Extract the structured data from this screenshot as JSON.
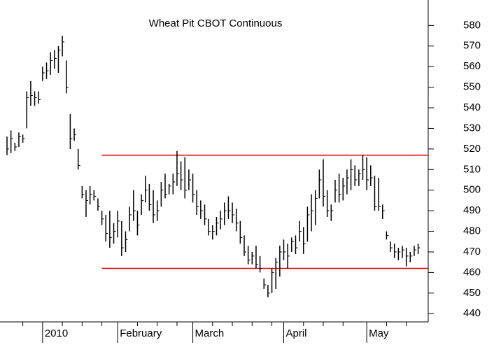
{
  "chart_data": {
    "type": "ohlc",
    "title": "Wheat Pit CBOT Continuous",
    "high": [
      526,
      529,
      523,
      528,
      527,
      548,
      553,
      548,
      548,
      560,
      562,
      567,
      568,
      570,
      575,
      563,
      537,
      530,
      520,
      502,
      500,
      502,
      500,
      496,
      490,
      488,
      490,
      484,
      490,
      485,
      480,
      492,
      500,
      490,
      498,
      507,
      503,
      500,
      495,
      504,
      508,
      503,
      508,
      519,
      514,
      516,
      510,
      508,
      500,
      495,
      493,
      486,
      483,
      487,
      490,
      494,
      497,
      494,
      491,
      485,
      478,
      473,
      470,
      473,
      468,
      457,
      454,
      462,
      467,
      473,
      476,
      474,
      477,
      478,
      485,
      482,
      492,
      498,
      500,
      510,
      515,
      500,
      493,
      505,
      508,
      506,
      510,
      515,
      512,
      510,
      517,
      516,
      512,
      507,
      506,
      493,
      480,
      475,
      474,
      472,
      473,
      472,
      470,
      473,
      474
    ],
    "low": [
      517,
      518,
      519,
      521,
      523,
      530,
      541,
      541,
      542,
      553,
      554,
      556,
      559,
      557,
      565,
      547,
      520,
      524,
      510,
      496,
      487,
      493,
      495,
      490,
      483,
      475,
      472,
      474,
      477,
      468,
      470,
      480,
      485,
      478,
      488,
      494,
      490,
      484,
      485,
      492,
      496,
      498,
      498,
      502,
      500,
      496,
      500,
      494,
      488,
      486,
      483,
      478,
      476,
      478,
      481,
      483,
      486,
      484,
      480,
      474,
      468,
      464,
      464,
      462,
      460,
      452,
      448,
      450,
      452,
      458,
      466,
      462,
      470,
      469,
      475,
      469,
      475,
      480,
      483,
      496,
      492,
      487,
      485,
      494,
      494,
      495,
      498,
      500,
      502,
      502,
      505,
      500,
      502,
      490,
      490,
      486,
      476,
      470,
      467,
      466,
      467,
      463,
      465,
      468,
      469
    ],
    "close": [
      520,
      525,
      521,
      526,
      525,
      545,
      546,
      545,
      544,
      557,
      558,
      563,
      564,
      568,
      572,
      550,
      525,
      527,
      512,
      498,
      495,
      498,
      497,
      492,
      486,
      479,
      477,
      480,
      485,
      472,
      476,
      488,
      490,
      483,
      495,
      500,
      493,
      488,
      490,
      500,
      498,
      502,
      504,
      508,
      505,
      500,
      505,
      498,
      492,
      490,
      486,
      480,
      480,
      484,
      486,
      490,
      490,
      488,
      484,
      477,
      470,
      466,
      468,
      464,
      462,
      454,
      450,
      460,
      465,
      470,
      470,
      468,
      475,
      472,
      480,
      474,
      488,
      490,
      496,
      505,
      497,
      490,
      490,
      500,
      498,
      502,
      506,
      510,
      505,
      508,
      510,
      505,
      506,
      492,
      492,
      490,
      478,
      472,
      470,
      470,
      471,
      468,
      468,
      471,
      472
    ],
    "color": "#000000",
    "ylim": [
      436,
      591
    ],
    "yticks": [
      440,
      450,
      460,
      470,
      480,
      490,
      500,
      510,
      520,
      530,
      540,
      550,
      560,
      570,
      580
    ],
    "hlines": [
      517,
      462
    ],
    "hline_color": "#e00000",
    "hline_start_index": 24,
    "x_labels": [
      {
        "index": 9,
        "label": "2010"
      },
      {
        "index": 28,
        "label": "February"
      },
      {
        "index": 47,
        "label": "March"
      },
      {
        "index": 70,
        "label": "April"
      },
      {
        "index": 91,
        "label": "May"
      }
    ],
    "minor_xticks": [
      4,
      14,
      19,
      24,
      33,
      38,
      43,
      52,
      57,
      62,
      67,
      75,
      80,
      85,
      96,
      101
    ]
  }
}
